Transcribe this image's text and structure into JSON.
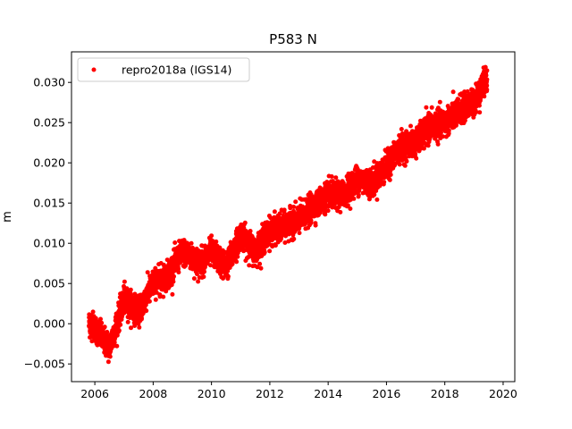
{
  "chart_data": {
    "type": "scatter",
    "title": "P583 N",
    "xlabel": "",
    "ylabel": "m",
    "xlim": [
      2005.2,
      2020.4
    ],
    "ylim": [
      -0.0072,
      0.0338
    ],
    "x_ticks": [
      2006,
      2008,
      2010,
      2012,
      2014,
      2016,
      2018,
      2020
    ],
    "y_ticks": [
      -0.005,
      0.0,
      0.005,
      0.01,
      0.015,
      0.02,
      0.025,
      0.03
    ],
    "x_tick_labels": [
      "2006",
      "2008",
      "2010",
      "2012",
      "2014",
      "2016",
      "2018",
      "2020"
    ],
    "y_tick_labels": [
      "−0.005",
      "0.000",
      "0.005",
      "0.010",
      "0.015",
      "0.020",
      "0.025",
      "0.030"
    ],
    "grid": false,
    "legend_position": "top-left",
    "series": [
      {
        "name": "repro2018a (IGS14)",
        "color": "#ff0000",
        "marker": "circle",
        "x_range": [
          2005.8,
          2019.45
        ],
        "trend_points": [
          [
            2005.9,
            0.0
          ],
          [
            2006.5,
            -0.003
          ],
          [
            2007.0,
            0.003
          ],
          [
            2007.5,
            0.0015
          ],
          [
            2008.0,
            0.005
          ],
          [
            2008.5,
            0.006
          ],
          [
            2009.0,
            0.009
          ],
          [
            2009.6,
            0.0075
          ],
          [
            2010.0,
            0.009
          ],
          [
            2010.5,
            0.007
          ],
          [
            2011.0,
            0.011
          ],
          [
            2011.5,
            0.009
          ],
          [
            2012.0,
            0.0115
          ],
          [
            2012.5,
            0.012
          ],
          [
            2013.0,
            0.013
          ],
          [
            2013.5,
            0.0145
          ],
          [
            2014.0,
            0.016
          ],
          [
            2014.5,
            0.016
          ],
          [
            2015.0,
            0.018
          ],
          [
            2015.5,
            0.0175
          ],
          [
            2016.0,
            0.0195
          ],
          [
            2016.5,
            0.022
          ],
          [
            2017.0,
            0.0225
          ],
          [
            2017.5,
            0.0245
          ],
          [
            2018.0,
            0.025
          ],
          [
            2018.5,
            0.0265
          ],
          [
            2019.0,
            0.0275
          ],
          [
            2019.45,
            0.0305
          ]
        ],
        "scatter_sd": 0.0011
      }
    ]
  }
}
